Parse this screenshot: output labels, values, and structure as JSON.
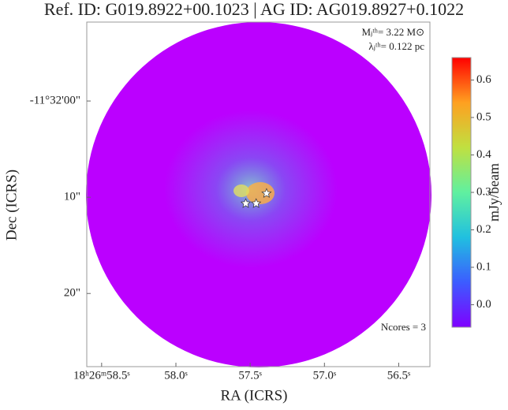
{
  "chart_data": {
    "type": "image",
    "title": "Ref. ID: G019.8922+00.1023 | AG ID: AG019.8927+0.1022",
    "xlabel": "RA (ICRS)",
    "ylabel": "Dec (ICRS)",
    "colorbar_label": "mJy/beam",
    "annotations": [
      "Mⱼᵗʰ= 3.22 M⊙",
      "λⱼᵗʰ= 0.122 pc",
      "Ncores = 3"
    ],
    "xlim": [
      58.6,
      56.29
    ],
    "xticks": [
      {
        "value": 58.5,
        "label": "18ʰ26ᵐ58.5ˢ"
      },
      {
        "value": 58.0,
        "label": "58.0ˢ"
      },
      {
        "value": 57.5,
        "label": "57.5ˢ"
      },
      {
        "value": 57.0,
        "label": "57.0ˢ"
      },
      {
        "value": 56.5,
        "label": "56.5ˢ"
      }
    ],
    "ylim": [
      -8.2,
      27.6
    ],
    "yticks": [
      {
        "value": 0,
        "label": "-11°32'00\""
      },
      {
        "value": 10,
        "label": "10\""
      },
      {
        "value": 20,
        "label": "20\""
      }
    ],
    "clim": [
      -0.06,
      0.66
    ],
    "cticks": [
      {
        "value": 0,
        "label": "0.0"
      },
      0.1,
      0.2,
      0.3,
      0.4,
      0.5,
      0.6
    ],
    "colormap": [
      "#7f00ff",
      "#3c5cff",
      "#20c0e0",
      "#60f0a0",
      "#c0e040",
      "#ffa020",
      "#ff0000"
    ],
    "cores": {
      "x": [
        57.53,
        57.46,
        57.39
      ],
      "y": [
        10.65,
        10.65,
        9.6
      ],
      "color": "#ffffff"
    }
  }
}
